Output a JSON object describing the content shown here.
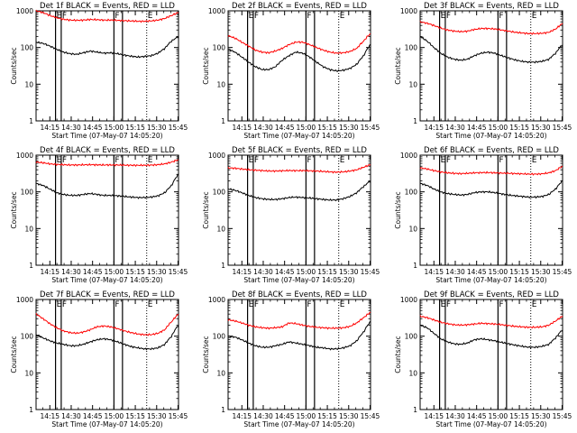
{
  "chart_data": {
    "type": "line",
    "layout": "3x3 grid of panels",
    "y_scale": "log",
    "ylim": [
      1,
      1000
    ],
    "yticks": [
      1,
      10,
      100,
      1000
    ],
    "ytick_labels": [
      "1",
      "10",
      "100",
      "1000"
    ],
    "xlim": [
      "14:05:20",
      "13:50"
    ],
    "xtick_labels": [
      "14:15",
      "14:30",
      "14:45",
      "15:00",
      "15:15",
      "15:30",
      "15:45"
    ],
    "xlabel": "Start Time (07-May-07 14:05:20)",
    "ylabel": "Counts/sec",
    "series_colors": {
      "events": "#000000",
      "lld": "#ff0000"
    },
    "vertical_lines": [
      {
        "time": "14:19",
        "style": "solid"
      },
      {
        "time": "14:23",
        "style": "solid"
      },
      {
        "time": "15:00",
        "style": "solid"
      },
      {
        "time": "15:06",
        "style": "solid"
      },
      {
        "time": "15:23",
        "style": "dotted"
      }
    ],
    "flags": [
      {
        "time": "14:19",
        "label": "E"
      },
      {
        "time": "14:23",
        "label": "F"
      },
      {
        "time": "15:00",
        "label": "F"
      },
      {
        "time": "15:23",
        "label": "E"
      }
    ],
    "panels": [
      {
        "title": "Det 1f BLACK = Events, RED = LLD",
        "series": [
          {
            "name": "Events",
            "color": "#000000",
            "values": [
              140,
              130,
              110,
              90,
              75,
              68,
              65,
              72,
              80,
              75,
              70,
              72,
              68,
              62,
              58,
              55,
              57,
              60,
              70,
              95,
              150,
              200
            ]
          },
          {
            "name": "LLD",
            "color": "#ff0000",
            "values": [
              1000,
              900,
              750,
              650,
              590,
              560,
              550,
              560,
              580,
              570,
              560,
              560,
              550,
              540,
              530,
              520,
              520,
              530,
              560,
              620,
              750,
              900
            ]
          }
        ]
      },
      {
        "title": "Det 2f BLACK = Events, RED = LLD",
        "series": [
          {
            "name": "Events",
            "color": "#000000",
            "values": [
              90,
              75,
              55,
              40,
              30,
              25,
              25,
              30,
              45,
              60,
              75,
              70,
              55,
              40,
              30,
              25,
              23,
              24,
              27,
              35,
              60,
              120
            ]
          },
          {
            "name": "LLD",
            "color": "#ff0000",
            "values": [
              210,
              180,
              140,
              110,
              85,
              75,
              72,
              80,
              95,
              120,
              140,
              140,
              120,
              100,
              85,
              75,
              70,
              72,
              78,
              95,
              150,
              240
            ]
          }
        ]
      },
      {
        "title": "Det 3f BLACK = Events, RED = LLD",
        "series": [
          {
            "name": "Events",
            "color": "#000000",
            "values": [
              200,
              150,
              100,
              70,
              55,
              48,
              45,
              48,
              60,
              70,
              75,
              70,
              60,
              52,
              46,
              42,
              40,
              40,
              42,
              48,
              70,
              120
            ]
          },
          {
            "name": "LLD",
            "color": "#ff0000",
            "values": [
              500,
              460,
              400,
              340,
              300,
              280,
              270,
              280,
              310,
              330,
              330,
              320,
              300,
              280,
              260,
              250,
              240,
              240,
              245,
              260,
              320,
              450
            ]
          }
        ]
      },
      {
        "title": "Det 4f BLACK = Events, RED = LLD",
        "series": [
          {
            "name": "Events",
            "color": "#000000",
            "values": [
              170,
              150,
              120,
              95,
              85,
              80,
              80,
              85,
              90,
              85,
              80,
              80,
              78,
              75,
              72,
              70,
              70,
              72,
              78,
              95,
              150,
              300
            ]
          },
          {
            "name": "LLD",
            "color": "#ff0000",
            "values": [
              650,
              620,
              580,
              560,
              550,
              540,
              540,
              545,
              550,
              545,
              540,
              540,
              540,
              535,
              530,
              530,
              530,
              535,
              550,
              580,
              650,
              750
            ]
          }
        ]
      },
      {
        "title": "Det 5f BLACK = Events, RED = LLD",
        "series": [
          {
            "name": "Events",
            "color": "#000000",
            "values": [
              120,
              110,
              95,
              80,
              70,
              65,
              62,
              62,
              65,
              70,
              72,
              70,
              68,
              65,
              62,
              60,
              60,
              65,
              75,
              95,
              140,
              200
            ]
          },
          {
            "name": "LLD",
            "color": "#ff0000",
            "values": [
              450,
              440,
              420,
              400,
              390,
              380,
              370,
              370,
              375,
              380,
              380,
              380,
              375,
              370,
              360,
              350,
              345,
              350,
              370,
              400,
              470,
              550
            ]
          }
        ]
      },
      {
        "title": "Det 6f BLACK = Events, RED = LLD",
        "series": [
          {
            "name": "Events",
            "color": "#000000",
            "values": [
              170,
              150,
              120,
              100,
              90,
              85,
              82,
              85,
              95,
              100,
              100,
              95,
              88,
              82,
              78,
              75,
              72,
              72,
              75,
              85,
              120,
              200
            ]
          },
          {
            "name": "LLD",
            "color": "#ff0000",
            "values": [
              450,
              420,
              380,
              350,
              330,
              320,
              315,
              320,
              330,
              335,
              335,
              330,
              325,
              320,
              315,
              310,
              305,
              305,
              310,
              330,
              380,
              500
            ]
          }
        ]
      },
      {
        "title": "Det 7f BLACK = Events, RED = LLD",
        "series": [
          {
            "name": "Events",
            "color": "#000000",
            "values": [
              110,
              90,
              75,
              65,
              60,
              55,
              55,
              60,
              70,
              80,
              85,
              80,
              70,
              60,
              52,
              48,
              45,
              45,
              48,
              60,
              100,
              200
            ]
          },
          {
            "name": "LLD",
            "color": "#ff0000",
            "values": [
              400,
              300,
              220,
              170,
              140,
              125,
              120,
              130,
              150,
              180,
              190,
              180,
              160,
              140,
              125,
              115,
              110,
              110,
              120,
              150,
              250,
              400
            ]
          }
        ]
      },
      {
        "title": "Det 8f BLACK = Events, RED = LLD",
        "series": [
          {
            "name": "Events",
            "color": "#000000",
            "values": [
              100,
              95,
              80,
              65,
              55,
              50,
              50,
              55,
              60,
              70,
              65,
              60,
              55,
              50,
              48,
              45,
              45,
              48,
              55,
              75,
              130,
              250
            ]
          },
          {
            "name": "LLD",
            "color": "#ff0000",
            "values": [
              280,
              260,
              230,
              200,
              180,
              170,
              165,
              170,
              180,
              230,
              220,
              200,
              185,
              175,
              170,
              165,
              165,
              170,
              185,
              230,
              320,
              450
            ]
          }
        ]
      },
      {
        "title": "Det 9f BLACK = Events, RED = LLD",
        "series": [
          {
            "name": "Events",
            "color": "#000000",
            "values": [
              200,
              170,
              120,
              85,
              70,
              62,
              60,
              65,
              80,
              85,
              80,
              75,
              68,
              62,
              57,
              53,
              50,
              50,
              53,
              60,
              90,
              150
            ]
          },
          {
            "name": "LLD",
            "color": "#ff0000",
            "values": [
              350,
              320,
              280,
              240,
              220,
              205,
              200,
              205,
              215,
              225,
              220,
              215,
              205,
              195,
              185,
              180,
              175,
              175,
              180,
              200,
              260,
              350
            ]
          }
        ]
      }
    ]
  }
}
